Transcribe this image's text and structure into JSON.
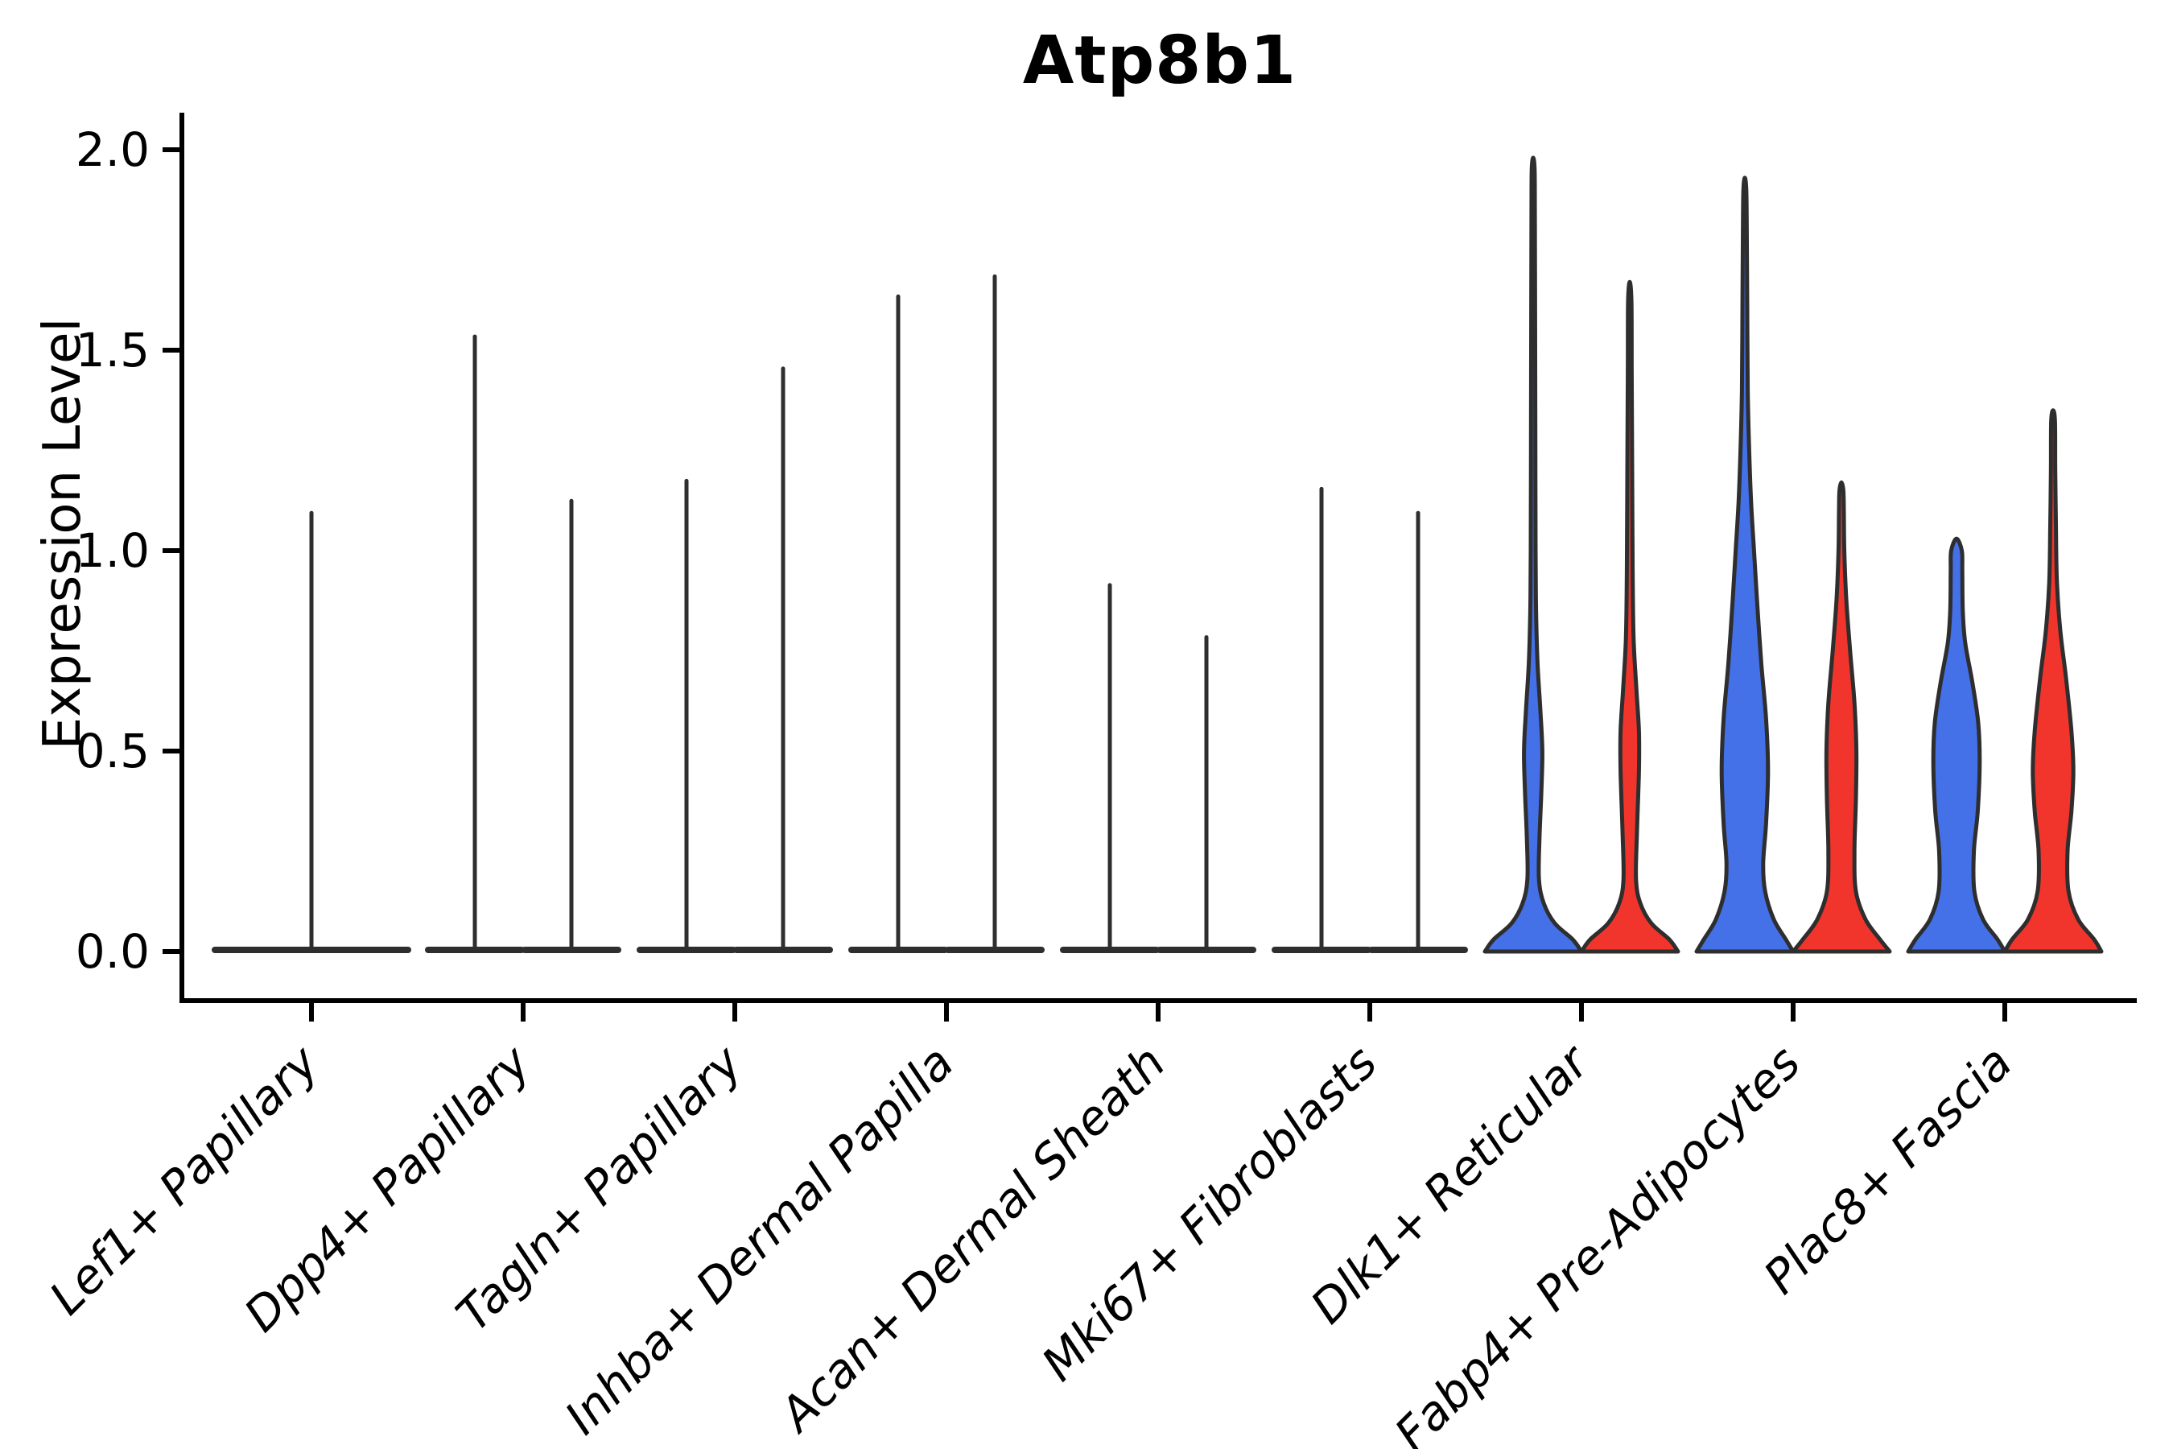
{
  "chart_data": {
    "type": "violin",
    "title": "Atp8b1",
    "ylabel": "Expression Level",
    "xlabel": "",
    "ylim": [
      0,
      2.05
    ],
    "yticks": [
      "0.0",
      "0.5",
      "1.0",
      "1.5",
      "2.0"
    ],
    "ytick_values": [
      0,
      0.5,
      1,
      1.5,
      2
    ],
    "grid": false,
    "legend_position": "none",
    "colors": {
      "blue": "#4470e8",
      "red": "#f2352c",
      "outline": "#2e2e2e",
      "axis": "#000000"
    },
    "categories": [
      {
        "label": "Lef1+ Papillary",
        "violins": [
          {
            "position": "center",
            "shape": "spike",
            "fill": "none",
            "max": 1.1
          }
        ]
      },
      {
        "label": "Dpp4+ Papillary",
        "violins": [
          {
            "position": "left",
            "shape": "spike",
            "fill": "none",
            "max": 1.54
          },
          {
            "position": "right",
            "shape": "spike",
            "fill": "none",
            "max": 1.13
          }
        ]
      },
      {
        "label": "Tagln+ Papillary",
        "violins": [
          {
            "position": "left",
            "shape": "spike",
            "fill": "none",
            "max": 1.18
          },
          {
            "position": "right",
            "shape": "spike",
            "fill": "none",
            "max": 1.46
          }
        ]
      },
      {
        "label": "Inhba+ Dermal Papilla",
        "violins": [
          {
            "position": "left",
            "shape": "spike",
            "fill": "none",
            "max": 1.64
          },
          {
            "position": "right",
            "shape": "spike",
            "fill": "none",
            "max": 1.69
          }
        ]
      },
      {
        "label": "Acan+ Dermal Sheath",
        "violins": [
          {
            "position": "left",
            "shape": "spike",
            "fill": "none",
            "max": 0.92
          },
          {
            "position": "right",
            "shape": "spike",
            "fill": "none",
            "max": 0.79
          }
        ]
      },
      {
        "label": "Mki67+ Fibroblasts",
        "violins": [
          {
            "position": "left",
            "shape": "spike",
            "fill": "none",
            "max": 1.16
          },
          {
            "position": "right",
            "shape": "spike",
            "fill": "none",
            "max": 1.1
          }
        ]
      },
      {
        "label": "Dlk1+ Reticular",
        "violins": [
          {
            "position": "left",
            "shape": "violin",
            "fill": "blue",
            "max": 1.98,
            "profile": [
              [
                0,
                1.0
              ],
              [
                0.03,
                0.82
              ],
              [
                0.07,
                0.45
              ],
              [
                0.12,
                0.22
              ],
              [
                0.18,
                0.12
              ],
              [
                0.28,
                0.13
              ],
              [
                0.4,
                0.17
              ],
              [
                0.5,
                0.19
              ],
              [
                0.6,
                0.15
              ],
              [
                0.72,
                0.09
              ],
              [
                0.85,
                0.06
              ],
              [
                1.0,
                0.05
              ],
              [
                1.3,
                0.045
              ],
              [
                1.6,
                0.04
              ],
              [
                1.85,
                0.035
              ],
              [
                1.95,
                0.03
              ],
              [
                1.98,
                0.0
              ]
            ]
          },
          {
            "position": "right",
            "shape": "violin",
            "fill": "red",
            "max": 1.67,
            "profile": [
              [
                0,
                1.0
              ],
              [
                0.03,
                0.82
              ],
              [
                0.07,
                0.45
              ],
              [
                0.12,
                0.22
              ],
              [
                0.18,
                0.13
              ],
              [
                0.3,
                0.15
              ],
              [
                0.45,
                0.19
              ],
              [
                0.55,
                0.19
              ],
              [
                0.65,
                0.14
              ],
              [
                0.78,
                0.08
              ],
              [
                0.95,
                0.06
              ],
              [
                1.2,
                0.05
              ],
              [
                1.45,
                0.04
              ],
              [
                1.62,
                0.035
              ],
              [
                1.67,
                0.0
              ]
            ]
          }
        ]
      },
      {
        "label": "Fabp4+ Pre-Adipocytes",
        "violins": [
          {
            "position": "left",
            "shape": "violin",
            "fill": "blue",
            "max": 1.93,
            "profile": [
              [
                0,
                1.0
              ],
              [
                0.03,
                0.85
              ],
              [
                0.08,
                0.6
              ],
              [
                0.15,
                0.42
              ],
              [
                0.22,
                0.38
              ],
              [
                0.32,
                0.44
              ],
              [
                0.45,
                0.48
              ],
              [
                0.58,
                0.44
              ],
              [
                0.72,
                0.34
              ],
              [
                0.88,
                0.25
              ],
              [
                1.0,
                0.19
              ],
              [
                1.12,
                0.13
              ],
              [
                1.25,
                0.09
              ],
              [
                1.4,
                0.06
              ],
              [
                1.6,
                0.05
              ],
              [
                1.8,
                0.04
              ],
              [
                1.9,
                0.03
              ],
              [
                1.93,
                0.0
              ]
            ]
          },
          {
            "position": "right",
            "shape": "violin",
            "fill": "red",
            "max": 1.17,
            "profile": [
              [
                0,
                1.0
              ],
              [
                0.03,
                0.8
              ],
              [
                0.08,
                0.5
              ],
              [
                0.15,
                0.3
              ],
              [
                0.25,
                0.27
              ],
              [
                0.38,
                0.3
              ],
              [
                0.5,
                0.31
              ],
              [
                0.62,
                0.27
              ],
              [
                0.75,
                0.18
              ],
              [
                0.88,
                0.1
              ],
              [
                1.0,
                0.06
              ],
              [
                1.1,
                0.05
              ],
              [
                1.15,
                0.04
              ],
              [
                1.17,
                0.0
              ]
            ]
          }
        ]
      },
      {
        "label": "Plac8+ Fascia",
        "violins": [
          {
            "position": "left",
            "shape": "violin",
            "fill": "blue",
            "max": 1.03,
            "profile": [
              [
                0,
                1.0
              ],
              [
                0.03,
                0.85
              ],
              [
                0.08,
                0.55
              ],
              [
                0.15,
                0.37
              ],
              [
                0.25,
                0.36
              ],
              [
                0.35,
                0.44
              ],
              [
                0.47,
                0.48
              ],
              [
                0.57,
                0.45
              ],
              [
                0.67,
                0.33
              ],
              [
                0.77,
                0.18
              ],
              [
                0.85,
                0.13
              ],
              [
                0.95,
                0.12
              ],
              [
                1.0,
                0.11
              ],
              [
                1.03,
                0.0
              ]
            ]
          },
          {
            "position": "right",
            "shape": "violin",
            "fill": "red",
            "max": 1.35,
            "profile": [
              [
                0,
                1.0
              ],
              [
                0.03,
                0.85
              ],
              [
                0.08,
                0.52
              ],
              [
                0.15,
                0.32
              ],
              [
                0.25,
                0.3
              ],
              [
                0.35,
                0.38
              ],
              [
                0.45,
                0.42
              ],
              [
                0.55,
                0.38
              ],
              [
                0.68,
                0.27
              ],
              [
                0.8,
                0.15
              ],
              [
                0.92,
                0.08
              ],
              [
                1.05,
                0.06
              ],
              [
                1.2,
                0.045
              ],
              [
                1.32,
                0.04
              ],
              [
                1.35,
                0.0
              ]
            ]
          }
        ]
      }
    ]
  }
}
